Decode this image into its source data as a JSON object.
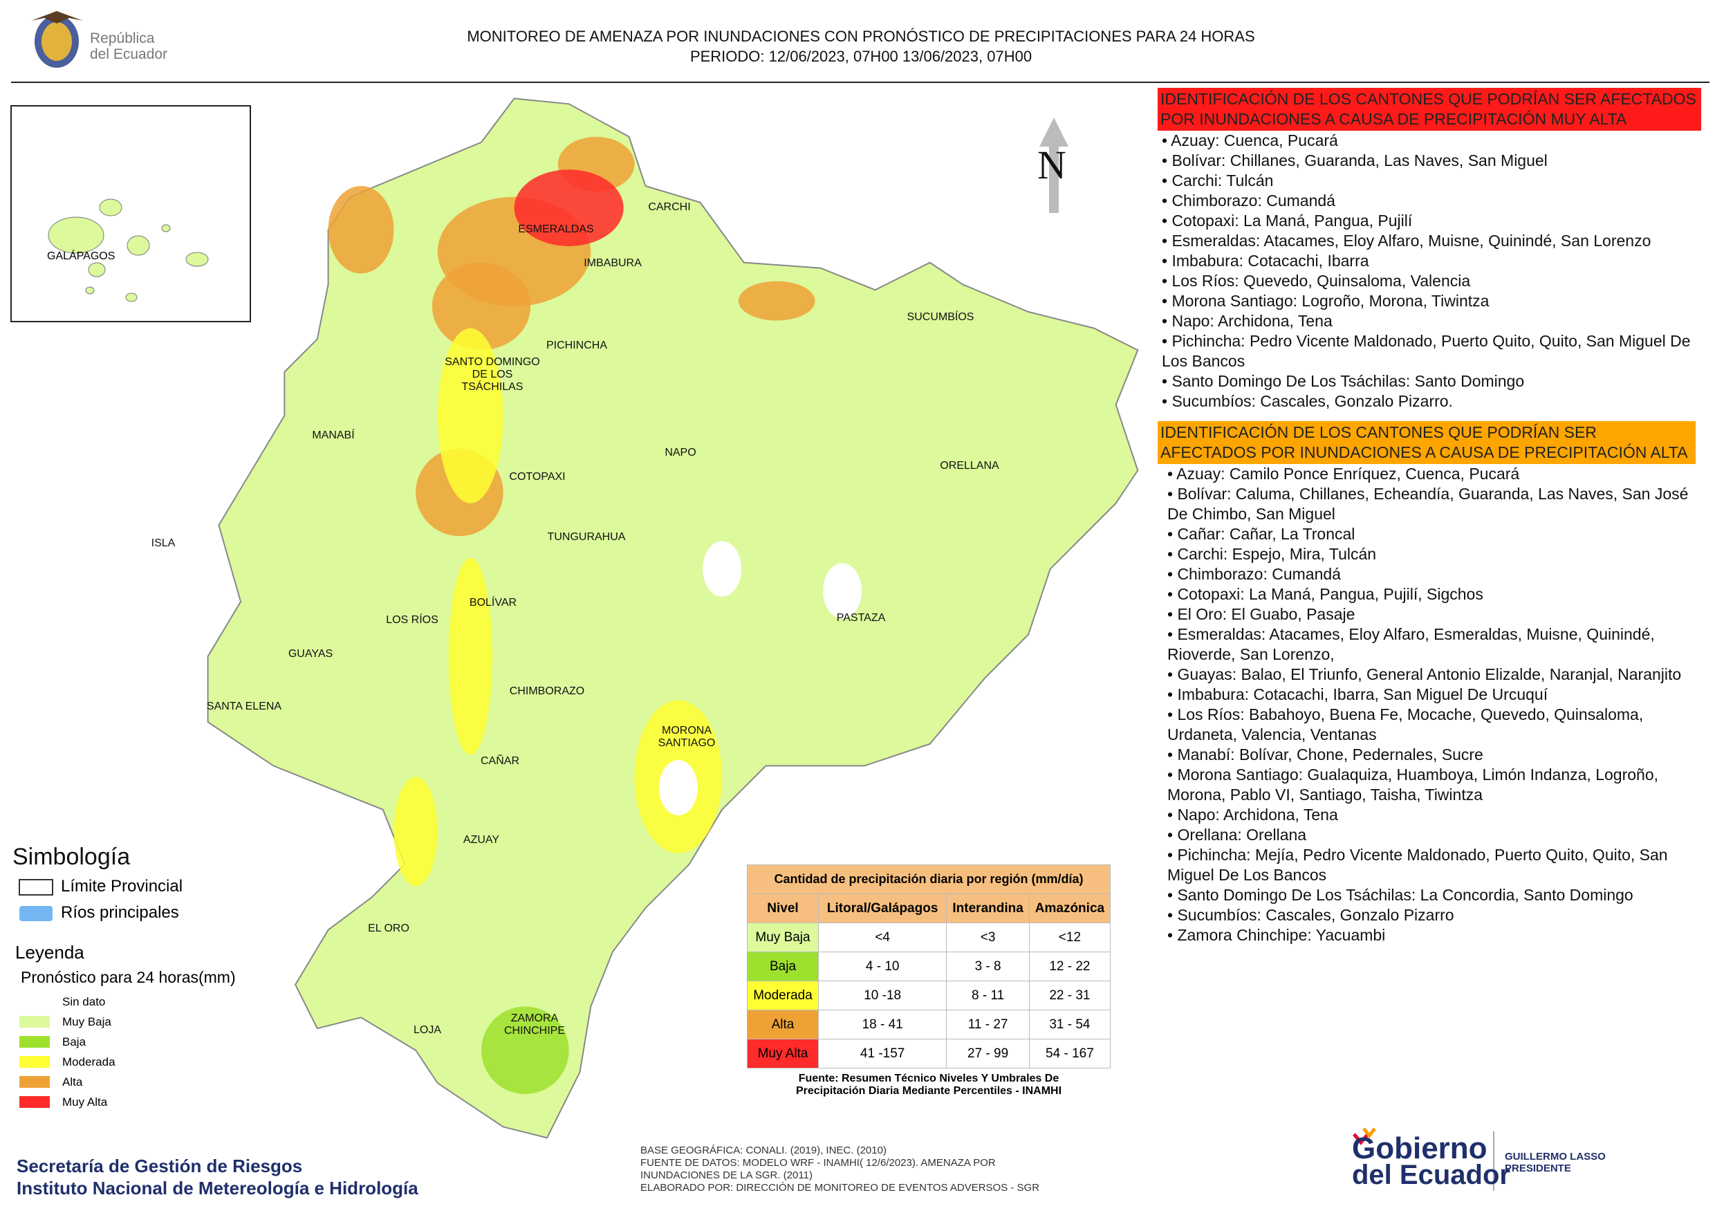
{
  "header": {
    "country_line1": "República",
    "country_line2": "del Ecuador",
    "title": "MONITOREO DE AMENAZA POR INUNDACIONES  CON PRONÓSTICO DE  PRECIPITACIONES PARA 24 HORAS",
    "period": "PERIODO: 12/06/2023, 07H00 13/06/2023, 07H00"
  },
  "north": "N",
  "inset_label": "GALÁPAGOS",
  "provinces": [
    "CARCHI",
    "ESMERALDAS",
    "IMBABURA",
    "SUCUMBÍOS",
    "PICHINCHA",
    "SANTO DOMINGO DE LOS TSÁCHILAS",
    "MANABÍ",
    "NAPO",
    "ORELLANA",
    "COTOPAXI",
    "ISLA",
    "TUNGURAHUA",
    "BOLÍVAR",
    "LOS RÍOS",
    "PASTAZA",
    "GUAYAS",
    "SANTA ELENA",
    "CHIMBORAZO",
    "MORONA SANTIAGO",
    "CAÑAR",
    "AZUAY",
    "EL ORO",
    "ZAMORA CHINCHIPE",
    "LOJA"
  ],
  "muy_alta": {
    "heading": "IDENTIFICACIÓN DE LOS CANTONES QUE PODRÍAN SER AFECTADOS POR INUNDACIONES  A CAUSA DE PRECIPITACIÓN MUY ALTA",
    "color": "#ff1a1a",
    "items": [
      "• Azuay: Cuenca, Pucará",
      "• Bolívar: Chillanes, Guaranda, Las Naves, San Miguel",
      "• Carchi: Tulcán",
      "• Chimborazo: Cumandá",
      "• Cotopaxi: La Maná, Pangua, Pujilí",
      "• Esmeraldas: Atacames, Eloy Alfaro, Muisne, Quinindé, San Lorenzo",
      "• Imbabura: Cotacachi, Ibarra",
      "• Los Ríos: Quevedo, Quinsaloma, Valencia",
      "• Morona Santiago: Logroño, Morona, Tiwintza",
      "• Napo: Archidona, Tena",
      "• Pichincha: Pedro Vicente Maldonado, Puerto Quito, Quito, San Miguel De Los Bancos",
      "• Santo Domingo De Los Tsáchilas: Santo Domingo",
      "• Sucumbíos: Cascales, Gonzalo Pizarro."
    ]
  },
  "alta": {
    "heading": "IDENTIFICACIÓN DE LOS CANTONES QUE  PODRÍAN SER AFECTADOS POR INUNDACIONES  A CAUSA DE PRECIPITACIÓN ALTA",
    "color": "#ffa500",
    "items": [
      "• Azuay: Camilo Ponce Enríquez, Cuenca, Pucará",
      "• Bolívar: Caluma, Chillanes, Echeandía, Guaranda, Las Naves, San José De Chimbo, San Miguel",
      "• Cañar: Cañar, La Troncal",
      "• Carchi: Espejo, Mira, Tulcán",
      "• Chimborazo: Cumandá",
      "• Cotopaxi: La Maná, Pangua, Pujilí, Sigchos",
      "• El Oro: El Guabo, Pasaje",
      "• Esmeraldas: Atacames, Eloy Alfaro, Esmeraldas, Muisne, Quinindé, Rioverde, San Lorenzo,",
      "• Guayas: Balao, El Triunfo, General Antonio Elizalde, Naranjal, Naranjito",
      "• Imbabura: Cotacachi, Ibarra, San Miguel De Urcuquí",
      "• Los Ríos: Babahoyo, Buena Fe, Mocache, Quevedo, Quinsaloma, Urdaneta, Valencia, Ventanas",
      "• Manabí: Bolívar, Chone, Pedernales, Sucre",
      "• Morona Santiago: Gualaquiza, Huamboya, Limón Indanza, Logroño, Morona, Pablo VI, Santiago, Taisha, Tiwintza",
      "• Napo: Archidona, Tena",
      "• Orellana: Orellana",
      "• Pichincha: Mejía, Pedro Vicente Maldonado, Puerto Quito, Quito, San Miguel De Los Bancos",
      "• Santo Domingo De Los Tsáchilas: La Concordia, Santo Domingo",
      "• Sucumbíos: Cascales, Gonzalo Pizarro",
      "• Zamora Chinchipe: Yacuambi"
    ]
  },
  "symbology": {
    "title": "Simbología",
    "items": [
      "Límite Provincial",
      "Ríos principales"
    ],
    "legend_title": "Leyenda",
    "forecast_title": "Pronóstico para 24 horas(mm)",
    "levels": [
      {
        "label": "Sin dato",
        "color": "#ffffff"
      },
      {
        "label": "Muy Baja",
        "color": "#dcf99c"
      },
      {
        "label": "Baja",
        "color": "#9ee02e"
      },
      {
        "label": "Moderada",
        "color": "#ffff33"
      },
      {
        "label": "Alta",
        "color": "#eea236"
      },
      {
        "label": "Muy Alta",
        "color": "#ff2a2a"
      }
    ]
  },
  "table": {
    "title": "Cantidad de precipitación diaria por región (mm/día)",
    "headers": [
      "Nivel",
      "Litoral/Galápagos",
      "Interandina",
      "Amazónica"
    ],
    "rows": [
      [
        "Muy Baja",
        "<4",
        "<3",
        "<12"
      ],
      [
        "Baja",
        "4 - 10",
        "3 - 8",
        "12 - 22"
      ],
      [
        "Moderada",
        "10 -18",
        "8 - 11",
        "22 - 31"
      ],
      [
        "Alta",
        "18 - 41",
        "11 - 27",
        "31 - 54"
      ],
      [
        "Muy Alta",
        "41 -157",
        "27 - 99",
        "54 - 167"
      ]
    ],
    "source": "Fuente: Resumen Técnico Niveles Y Umbrales De Precipitación Diaria Mediante Percentiles - INAMHI"
  },
  "footer": {
    "org1": "Secretaría de Gestión de Riesgos",
    "org2": "Instituto Nacional de Metereología e Hidrología",
    "credits": [
      "BASE GEOGRÁFICA: CONALI. (2019), INEC. (2010)",
      "FUENTE DE DATOS: MODELO WRF - INAMHI( 12/6/2023).  AMENAZA POR",
      "INUNDACIONES DE LA SGR. (2011)",
      "ELABORADO POR: DIRECCIÓN DE MONITOREO DE EVENTOS ADVERSOS - SGR"
    ],
    "gov1": "Gobierno",
    "gov2": "del Ecuador",
    "president": "GUILLERMO LASSO",
    "president_title": "PRESIDENTE"
  }
}
